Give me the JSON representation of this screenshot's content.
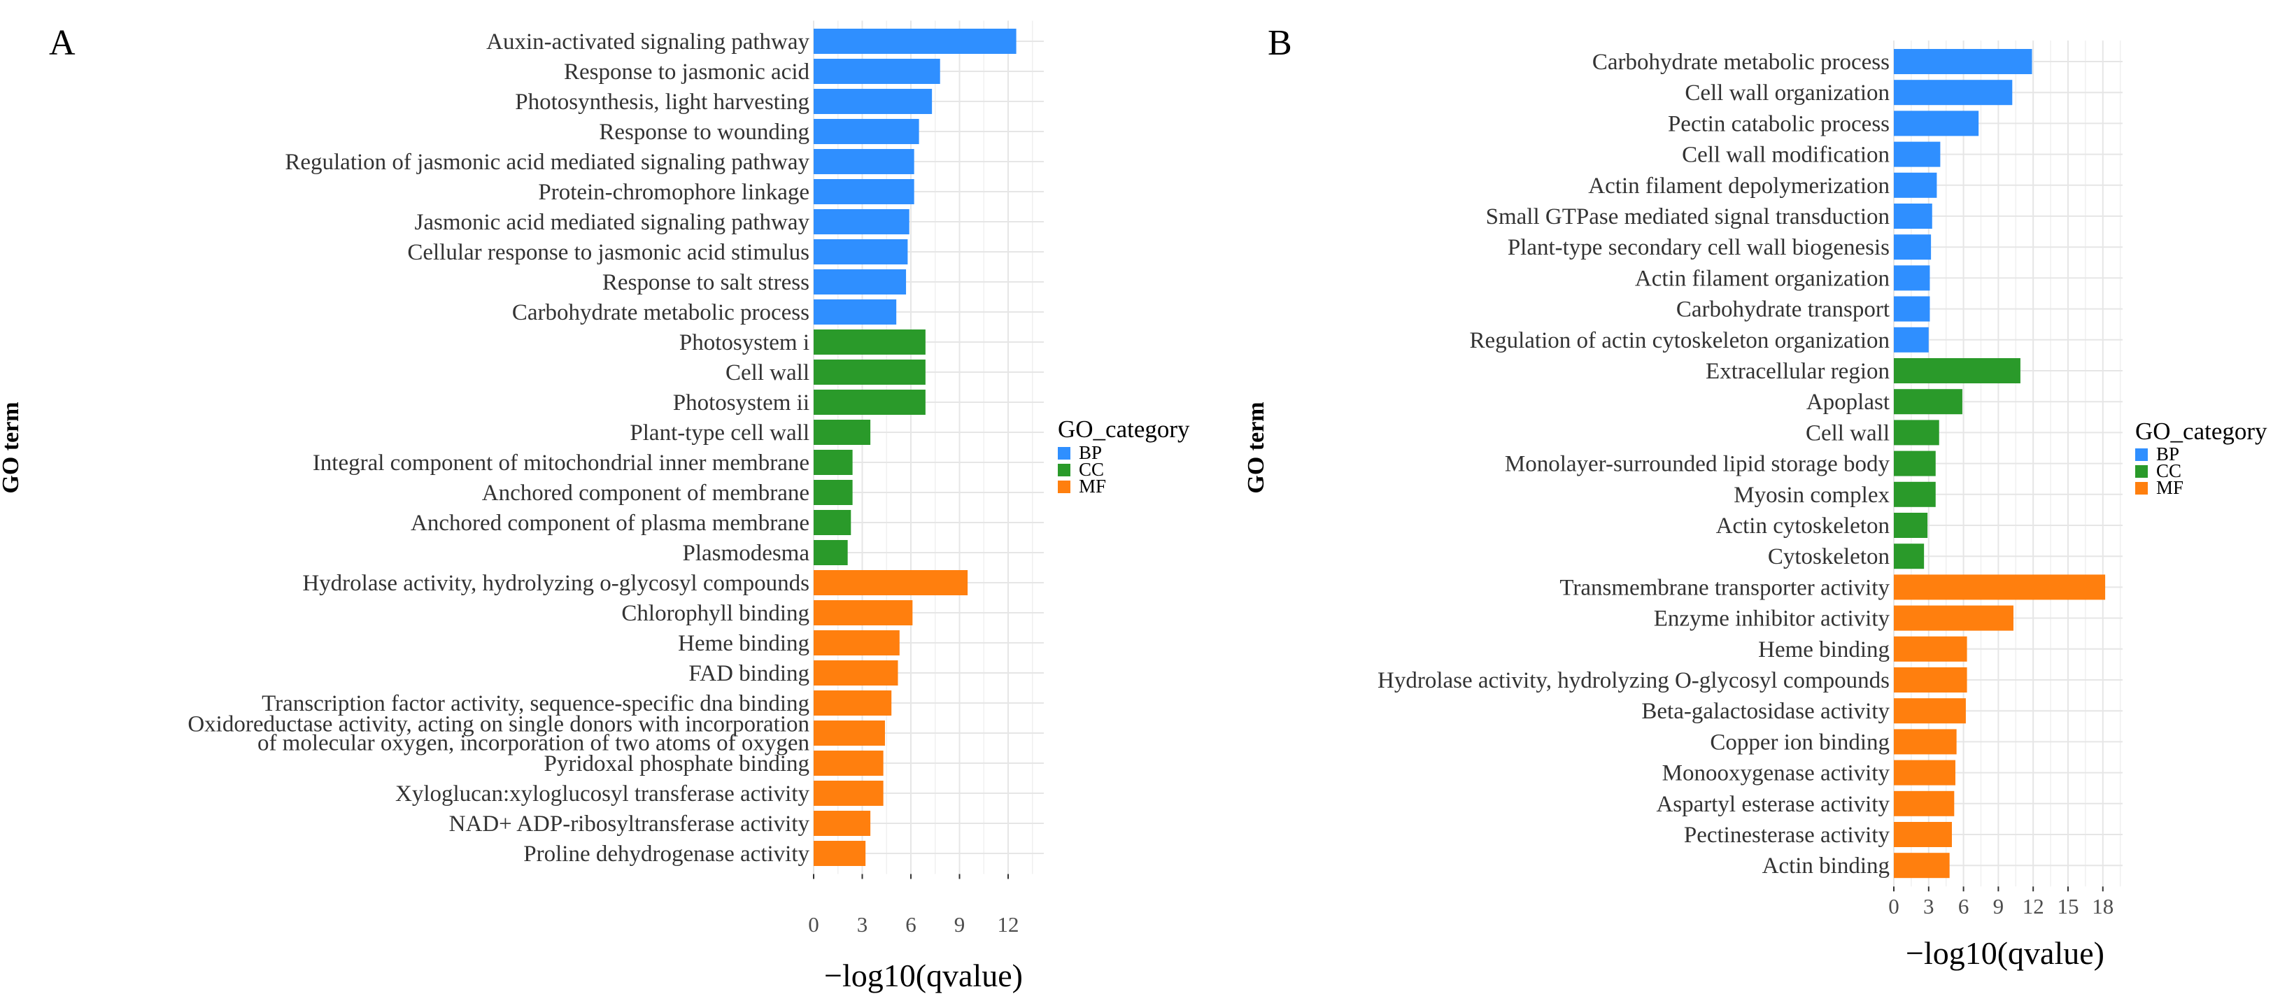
{
  "chart_data": [
    {
      "panel": "A",
      "type": "bar",
      "orientation": "horizontal",
      "xlabel": "−log10(qvalue)",
      "ylabel": "GO term",
      "xlim": [
        0,
        14.2
      ],
      "xticks": [
        0,
        3,
        6,
        9,
        12
      ],
      "legend": {
        "title": "GO_category",
        "entries": [
          "BP",
          "CC",
          "MF"
        ]
      },
      "colors": {
        "BP": "#2f8fff",
        "CC": "#2a9a2a",
        "MF": "#ff7f0e"
      },
      "bars": [
        {
          "label": [
            "Auxin-activated signaling pathway"
          ],
          "value": 12.5,
          "category": "BP"
        },
        {
          "label": [
            "Response to jasmonic acid"
          ],
          "value": 7.8,
          "category": "BP"
        },
        {
          "label": [
            "Photosynthesis, light harvesting"
          ],
          "value": 7.3,
          "category": "BP"
        },
        {
          "label": [
            "Response to wounding"
          ],
          "value": 6.5,
          "category": "BP"
        },
        {
          "label": [
            "Regulation of jasmonic acid mediated signaling pathway"
          ],
          "value": 6.2,
          "category": "BP"
        },
        {
          "label": [
            "Protein-chromophore linkage"
          ],
          "value": 6.2,
          "category": "BP"
        },
        {
          "label": [
            "Jasmonic acid mediated signaling pathway"
          ],
          "value": 5.9,
          "category": "BP"
        },
        {
          "label": [
            "Cellular response to jasmonic acid stimulus"
          ],
          "value": 5.8,
          "category": "BP"
        },
        {
          "label": [
            "Response to salt stress"
          ],
          "value": 5.7,
          "category": "BP"
        },
        {
          "label": [
            "Carbohydrate metabolic process"
          ],
          "value": 5.1,
          "category": "BP"
        },
        {
          "label": [
            "Photosystem i"
          ],
          "value": 6.9,
          "category": "CC"
        },
        {
          "label": [
            "Cell wall"
          ],
          "value": 6.9,
          "category": "CC"
        },
        {
          "label": [
            "Photosystem ii"
          ],
          "value": 6.9,
          "category": "CC"
        },
        {
          "label": [
            "Plant-type cell wall"
          ],
          "value": 3.5,
          "category": "CC"
        },
        {
          "label": [
            "Integral component of mitochondrial inner membrane"
          ],
          "value": 2.4,
          "category": "CC"
        },
        {
          "label": [
            "Anchored component of membrane"
          ],
          "value": 2.4,
          "category": "CC"
        },
        {
          "label": [
            "Anchored component of plasma membrane"
          ],
          "value": 2.3,
          "category": "CC"
        },
        {
          "label": [
            "Plasmodesma"
          ],
          "value": 2.1,
          "category": "CC"
        },
        {
          "label": [
            "Hydrolase activity, hydrolyzing o-glycosyl compounds"
          ],
          "value": 9.5,
          "category": "MF"
        },
        {
          "label": [
            "Chlorophyll binding"
          ],
          "value": 6.1,
          "category": "MF"
        },
        {
          "label": [
            "Heme binding"
          ],
          "value": 5.3,
          "category": "MF"
        },
        {
          "label": [
            "FAD binding"
          ],
          "value": 5.2,
          "category": "MF"
        },
        {
          "label": [
            "Transcription factor activity, sequence-specific dna binding"
          ],
          "value": 4.8,
          "category": "MF"
        },
        {
          "label": [
            "Oxidoreductase activity, acting on single donors with incorporation",
            "of molecular oxygen, incorporation of two atoms of oxygen"
          ],
          "value": 4.4,
          "category": "MF"
        },
        {
          "label": [
            "Pyridoxal phosphate binding"
          ],
          "value": 4.3,
          "category": "MF"
        },
        {
          "label": [
            "Xyloglucan:xyloglucosyl transferase activity"
          ],
          "value": 4.3,
          "category": "MF"
        },
        {
          "label": [
            "NAD+ ADP-ribosyltransferase activity"
          ],
          "value": 3.5,
          "category": "MF"
        },
        {
          "label": [
            "Proline dehydrogenase activity"
          ],
          "value": 3.2,
          "category": "MF"
        }
      ]
    },
    {
      "panel": "B",
      "type": "bar",
      "orientation": "horizontal",
      "xlabel": "−log10(qvalue)",
      "ylabel": "GO term",
      "xlim": [
        0,
        19.7
      ],
      "xticks": [
        0,
        3,
        6,
        9,
        12,
        15,
        18
      ],
      "legend": {
        "title": "GO_category",
        "entries": [
          "BP",
          "CC",
          "MF"
        ]
      },
      "colors": {
        "BP": "#2f8fff",
        "CC": "#2a9a2a",
        "MF": "#ff7f0e"
      },
      "bars": [
        {
          "label": [
            "Carbohydrate metabolic process"
          ],
          "value": 11.9,
          "category": "BP"
        },
        {
          "label": [
            "Cell wall organization"
          ],
          "value": 10.2,
          "category": "BP"
        },
        {
          "label": [
            "Pectin catabolic process"
          ],
          "value": 7.3,
          "category": "BP"
        },
        {
          "label": [
            "Cell wall modification"
          ],
          "value": 4.0,
          "category": "BP"
        },
        {
          "label": [
            "Actin filament depolymerization"
          ],
          "value": 3.7,
          "category": "BP"
        },
        {
          "label": [
            "Small GTPase mediated signal transduction"
          ],
          "value": 3.3,
          "category": "BP"
        },
        {
          "label": [
            "Plant-type secondary cell wall biogenesis"
          ],
          "value": 3.2,
          "category": "BP"
        },
        {
          "label": [
            "Actin filament organization"
          ],
          "value": 3.1,
          "category": "BP"
        },
        {
          "label": [
            "Carbohydrate transport"
          ],
          "value": 3.1,
          "category": "BP"
        },
        {
          "label": [
            "Regulation of actin cytoskeleton organization"
          ],
          "value": 3.0,
          "category": "BP"
        },
        {
          "label": [
            "Extracellular region"
          ],
          "value": 10.9,
          "category": "CC"
        },
        {
          "label": [
            "Apoplast"
          ],
          "value": 5.9,
          "category": "CC"
        },
        {
          "label": [
            "Cell wall"
          ],
          "value": 3.9,
          "category": "CC"
        },
        {
          "label": [
            "Monolayer-surrounded lipid storage body"
          ],
          "value": 3.6,
          "category": "CC"
        },
        {
          "label": [
            "Myosin complex"
          ],
          "value": 3.6,
          "category": "CC"
        },
        {
          "label": [
            "Actin cytoskeleton"
          ],
          "value": 2.9,
          "category": "CC"
        },
        {
          "label": [
            "Cytoskeleton"
          ],
          "value": 2.6,
          "category": "CC"
        },
        {
          "label": [
            "Transmembrane transporter activity"
          ],
          "value": 18.2,
          "category": "MF"
        },
        {
          "label": [
            "Enzyme inhibitor activity"
          ],
          "value": 10.3,
          "category": "MF"
        },
        {
          "label": [
            "Heme binding"
          ],
          "value": 6.3,
          "category": "MF"
        },
        {
          "label": [
            "Hydrolase activity, hydrolyzing O-glycosyl compounds"
          ],
          "value": 6.3,
          "category": "MF"
        },
        {
          "label": [
            "Beta-galactosidase activity"
          ],
          "value": 6.2,
          "category": "MF"
        },
        {
          "label": [
            "Copper ion binding"
          ],
          "value": 5.4,
          "category": "MF"
        },
        {
          "label": [
            "Monooxygenase activity"
          ],
          "value": 5.3,
          "category": "MF"
        },
        {
          "label": [
            "Aspartyl esterase activity"
          ],
          "value": 5.2,
          "category": "MF"
        },
        {
          "label": [
            "Pectinesterase activity"
          ],
          "value": 5.0,
          "category": "MF"
        },
        {
          "label": [
            "Actin binding"
          ],
          "value": 4.8,
          "category": "MF"
        }
      ]
    }
  ]
}
